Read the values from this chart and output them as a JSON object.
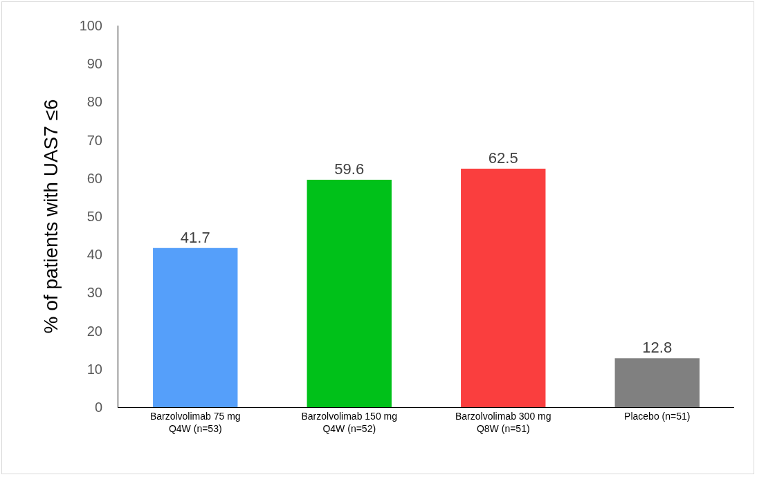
{
  "chart_data": {
    "type": "bar",
    "ylabel": "% of patients with UAS7 ≤6",
    "categories": [
      "Barzolvolimab 75 mg\nQ4W (n=53)",
      "Barzolvolimab 150 mg\nQ4W (n=52)",
      "Barzolvolimab 300 mg\nQ8W (n=51)",
      "Placebo (n=51)"
    ],
    "values": [
      41.7,
      59.6,
      62.5,
      12.8
    ],
    "colors": [
      "#559ffa",
      "#00c119",
      "#fa3e3e",
      "#808080"
    ],
    "ylim": [
      0,
      100
    ],
    "yticks": [
      0,
      10,
      20,
      30,
      40,
      50,
      60,
      70,
      80,
      90,
      100
    ],
    "data_labels": true,
    "grid": false,
    "legend": false
  }
}
